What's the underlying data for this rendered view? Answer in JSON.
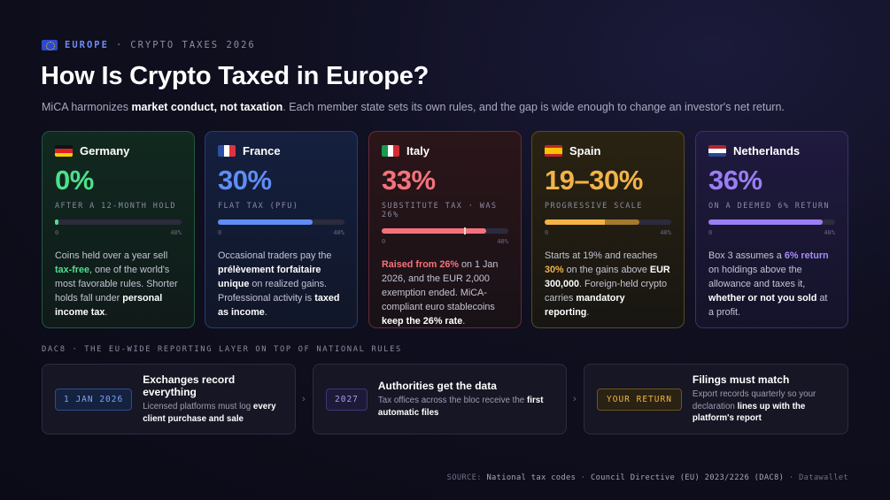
{
  "header": {
    "region": "EUROPE",
    "separator": "·",
    "kicker": "CRYPTO TAXES 2026",
    "title": "How Is Crypto Taxed in Europe?",
    "subtitle_pre": "MiCA harmonizes ",
    "subtitle_bold": "market conduct, not taxation",
    "subtitle_post": ". Each member state sets its own rules, and the gap is wide enough to change an investor's net return."
  },
  "chart_data": {
    "type": "bar",
    "categories": [
      "Germany",
      "France",
      "Italy",
      "Spain",
      "Netherlands"
    ],
    "xlim": [
      0,
      40
    ],
    "scale_labels": [
      "0",
      "40%"
    ],
    "colors": {
      "Germany": "#4de08c",
      "France": "#5f8df5",
      "Italy": "#f4727c",
      "Spain": "#f3b347",
      "Netherlands": "#9a7ef4"
    },
    "countries": [
      {
        "name": "Germany",
        "rate_label": "0%",
        "caption": "AFTER A 12-MONTH HOLD",
        "value": 0,
        "desc": [
          {
            "t": "Coins held over a year sell "
          },
          {
            "t": "tax-free",
            "s": "green"
          },
          {
            "t": ", one of the world's most favorable rules. Shorter holds fall under "
          },
          {
            "t": "personal income tax",
            "s": "bold"
          },
          {
            "t": "."
          }
        ]
      },
      {
        "name": "France",
        "rate_label": "30%",
        "caption": "FLAT TAX (PFU)",
        "value": 30,
        "desc": [
          {
            "t": "Occasional traders pay the "
          },
          {
            "t": "prélèvement forfaitaire unique",
            "s": "bold"
          },
          {
            "t": " on realized gains. Professional activity is "
          },
          {
            "t": "taxed as income",
            "s": "bold"
          },
          {
            "t": "."
          }
        ]
      },
      {
        "name": "Italy",
        "rate_label": "33%",
        "caption": "SUBSTITUTE TAX · WAS 26%",
        "value": 33,
        "previous_value": 26,
        "desc": [
          {
            "t": "Raised from 26%",
            "s": "red"
          },
          {
            "t": " on 1 Jan 2026, and the EUR 2,000 exemption ended. MiCA-compliant euro stablecoins "
          },
          {
            "t": "keep the 26% rate",
            "s": "bold"
          },
          {
            "t": "."
          }
        ]
      },
      {
        "name": "Spain",
        "rate_label": "19–30%",
        "caption": "PROGRESSIVE SCALE",
        "value_min": 19,
        "value": 30,
        "desc": [
          {
            "t": "Starts at 19% and reaches "
          },
          {
            "t": "30%",
            "s": "amber"
          },
          {
            "t": " on the gains above "
          },
          {
            "t": "EUR 300,000",
            "s": "bold"
          },
          {
            "t": ". Foreign-held crypto carries "
          },
          {
            "t": "mandatory reporting",
            "s": "bold"
          },
          {
            "t": "."
          }
        ]
      },
      {
        "name": "Netherlands",
        "rate_label": "36%",
        "caption": "ON A DEEMED 6% RETURN",
        "value": 36,
        "desc": [
          {
            "t": "Box 3 assumes a "
          },
          {
            "t": "6% return",
            "s": "purple"
          },
          {
            "t": " on holdings above the allowance and taxes it, "
          },
          {
            "t": "whether or not you sold",
            "s": "bold"
          },
          {
            "t": " at a profit."
          }
        ]
      }
    ]
  },
  "dac8": {
    "label": "DAC8 · THE EU-WIDE REPORTING LAYER ON TOP OF NATIONAL RULES",
    "steps": [
      {
        "tag": "1 JAN 2026",
        "title": "Exchanges record everything",
        "desc": [
          {
            "t": "Licensed platforms must log "
          },
          {
            "t": "every client purchase and sale",
            "s": "bold"
          }
        ]
      },
      {
        "tag": "2027",
        "title": "Authorities get the data",
        "desc": [
          {
            "t": "Tax offices across the bloc receive the "
          },
          {
            "t": "first automatic files",
            "s": "bold"
          }
        ]
      },
      {
        "tag": "YOUR RETURN",
        "title": "Filings must match",
        "desc": [
          {
            "t": "Export records quarterly so your declaration "
          },
          {
            "t": "lines up with the platform's report",
            "s": "bold"
          }
        ]
      }
    ]
  },
  "source": {
    "prefix": "SOURCE:",
    "items": [
      "National tax codes",
      "Council Directive (EU) 2023/2226 (DAC8)",
      "Datawallet"
    ],
    "separator": " · "
  }
}
